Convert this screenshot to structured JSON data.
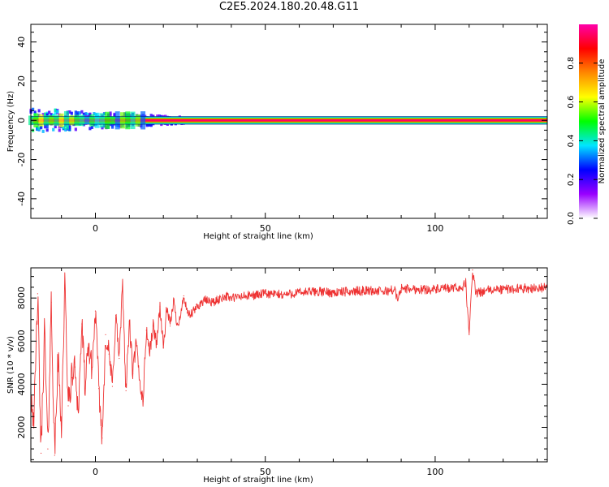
{
  "title": "C2E5.2024.180.20.48.G11",
  "chart_data": [
    {
      "type": "heatmap",
      "xlabel": "Height of straight line (km)",
      "ylabel": "Frequency (Hz)",
      "xlim": [
        -19,
        133
      ],
      "ylim": [
        -50,
        49
      ],
      "x_ticks": [
        0,
        50,
        100
      ],
      "y_ticks": [
        -40,
        -20,
        0,
        20,
        40
      ],
      "colorbar": {
        "label": "Normalized spectral amplitude",
        "range": [
          0,
          1
        ],
        "ticks": [
          0.0,
          0.2,
          0.4,
          0.6,
          0.8
        ],
        "colormap": [
          "#ffffff",
          "#9900ff",
          "#0000ff",
          "#00e5ff",
          "#00ff00",
          "#ffff00",
          "#ff8800",
          "#ff0000",
          "#ff00aa"
        ]
      },
      "signal": {
        "center_frequency": 0,
        "band_halfwidth": 2,
        "noisy_until_height": 27,
        "noisy_spread": 5
      },
      "grid": false
    },
    {
      "type": "line",
      "xlabel": "Height of straight line (km)",
      "ylabel": "SNR (10 * v/v)",
      "xlim": [
        -19,
        133
      ],
      "ylim": [
        400,
        9400
      ],
      "x_ticks": [
        0,
        50,
        100
      ],
      "y_ticks": [
        2000,
        4000,
        6000,
        8000
      ],
      "series": [
        {
          "color": "#ee3333",
          "points": [
            [
              -19,
              3600
            ],
            [
              -18,
              2500
            ],
            [
              -17,
              8200
            ],
            [
              -16,
              800
            ],
            [
              -15,
              6500
            ],
            [
              -14,
              1000
            ],
            [
              -13,
              7800
            ],
            [
              -12,
              700
            ],
            [
              -11,
              5200
            ],
            [
              -10,
              2100
            ],
            [
              -9,
              8600
            ],
            [
              -8,
              3000
            ],
            [
              -7,
              4300
            ],
            [
              -6,
              4800
            ],
            [
              -5,
              2700
            ],
            [
              -4,
              6800
            ],
            [
              -3,
              3800
            ],
            [
              -2,
              5800
            ],
            [
              -1,
              4700
            ],
            [
              0,
              7400
            ],
            [
              1,
              3800
            ],
            [
              2,
              1500
            ],
            [
              3,
              6300
            ],
            [
              4,
              5400
            ],
            [
              5,
              3900
            ],
            [
              6,
              7200
            ],
            [
              7,
              5200
            ],
            [
              8,
              8500
            ],
            [
              9,
              3700
            ],
            [
              10,
              6900
            ],
            [
              11,
              4500
            ],
            [
              12,
              5900
            ],
            [
              13,
              4200
            ],
            [
              14,
              3200
            ],
            [
              15,
              6500
            ],
            [
              16,
              5500
            ],
            [
              17,
              6700
            ],
            [
              18,
              5900
            ],
            [
              19,
              7600
            ],
            [
              20,
              5700
            ],
            [
              21,
              7500
            ],
            [
              22,
              6700
            ],
            [
              23,
              7900
            ],
            [
              24,
              6800
            ],
            [
              25,
              7100
            ],
            [
              26,
              8100
            ],
            [
              27,
              7300
            ],
            [
              28,
              7200
            ],
            [
              30,
              7600
            ],
            [
              32,
              7900
            ],
            [
              35,
              7800
            ],
            [
              38,
              8100
            ],
            [
              40,
              8000
            ],
            [
              45,
              8100
            ],
            [
              50,
              8200
            ],
            [
              55,
              8150
            ],
            [
              60,
              8250
            ],
            [
              65,
              8300
            ],
            [
              70,
              8250
            ],
            [
              75,
              8300
            ],
            [
              80,
              8350
            ],
            [
              85,
              8300
            ],
            [
              88,
              8400
            ],
            [
              89,
              7900
            ],
            [
              90,
              8450
            ],
            [
              95,
              8400
            ],
            [
              100,
              8400
            ],
            [
              105,
              8450
            ],
            [
              108,
              8500
            ],
            [
              109,
              8700
            ],
            [
              110,
              6300
            ],
            [
              111,
              9300
            ],
            [
              112,
              8200
            ],
            [
              115,
              8350
            ],
            [
              120,
              8400
            ],
            [
              125,
              8450
            ],
            [
              130,
              8450
            ],
            [
              133,
              8500
            ]
          ]
        }
      ],
      "grid": false
    }
  ]
}
